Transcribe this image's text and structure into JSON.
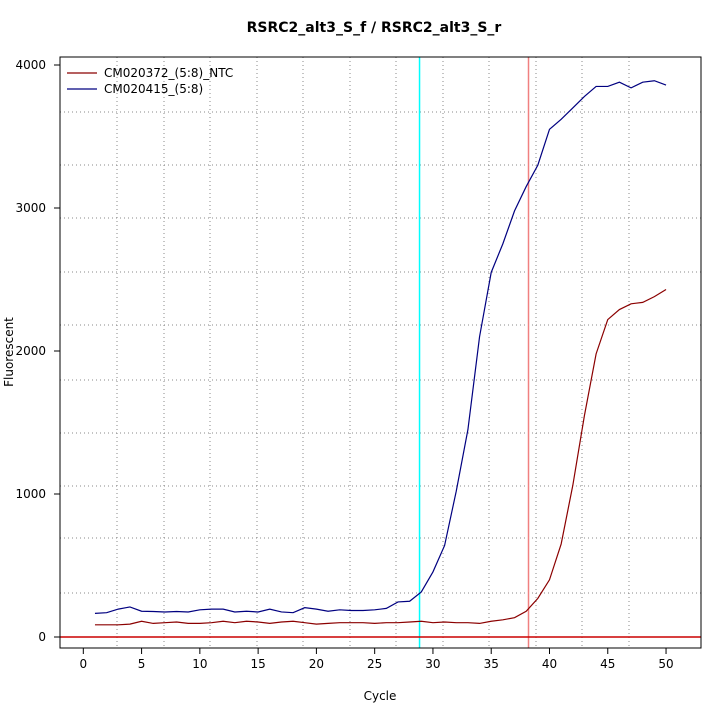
{
  "chart_data": {
    "type": "line",
    "title": "RSRC2_alt3_S_f / RSRC2_alt3_S_r",
    "x_label": "Cycle",
    "y_label": "Fluorescent",
    "x": [
      1,
      2,
      3,
      4,
      5,
      6,
      7,
      8,
      9,
      10,
      11,
      12,
      13,
      14,
      15,
      16,
      17,
      18,
      19,
      20,
      21,
      22,
      23,
      24,
      25,
      26,
      27,
      28,
      29,
      30,
      31,
      32,
      33,
      34,
      35,
      36,
      37,
      38,
      39,
      40,
      41,
      42,
      43,
      44,
      45,
      46,
      47,
      48,
      49,
      50
    ],
    "series": [
      {
        "name": "CM020372_(5:8)_NTC",
        "color": "#8b0000",
        "values": [
          85,
          85,
          85,
          90,
          110,
          95,
          100,
          105,
          95,
          95,
          100,
          110,
          100,
          110,
          105,
          95,
          105,
          110,
          100,
          90,
          95,
          100,
          100,
          100,
          95,
          100,
          100,
          105,
          110,
          100,
          105,
          100,
          100,
          95,
          110,
          120,
          135,
          180,
          270,
          400,
          650,
          1060,
          1550,
          1980,
          2220,
          2290,
          2330,
          2340,
          2380,
          2430
        ]
      },
      {
        "name": "CM020415_(5:8)",
        "color": "#000080",
        "values": [
          165,
          170,
          195,
          210,
          180,
          178,
          175,
          178,
          175,
          190,
          195,
          195,
          175,
          180,
          175,
          195,
          175,
          170,
          205,
          195,
          180,
          190,
          185,
          185,
          190,
          200,
          245,
          250,
          315,
          455,
          640,
          1020,
          1450,
          2100,
          2550,
          2750,
          2980,
          3150,
          3300,
          3550,
          3620,
          3700,
          3780,
          3850,
          3850,
          3880,
          3840,
          3880,
          3890,
          3860
        ]
      }
    ],
    "xlim": [
      -2,
      53
    ],
    "xticks": [
      0,
      5,
      10,
      15,
      20,
      25,
      30,
      35,
      40,
      45,
      50
    ],
    "ylim": [
      -77,
      4056
    ],
    "yticks": [
      0,
      1000,
      2000,
      3000,
      4000
    ],
    "vlines": [
      {
        "value": 28.85,
        "color": "#00ffff"
      },
      {
        "value": 38.2,
        "color": "#f08080"
      }
    ],
    "hlines": [
      {
        "value": 0,
        "color": "#cc0000"
      }
    ],
    "legend": "top-left"
  }
}
